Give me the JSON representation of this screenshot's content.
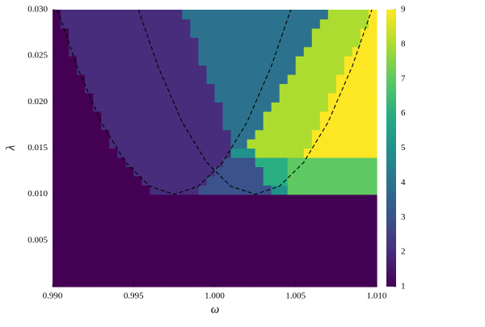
{
  "chart_data": {
    "type": "heatmap",
    "x_label": "ω",
    "y_label": "λ",
    "xlim": [
      0.99,
      1.01
    ],
    "ylim": [
      0,
      0.03
    ],
    "xticks": [
      {
        "value": 0.99,
        "label": "0.990"
      },
      0.995,
      {
        "value": 1.0,
        "label": "1.000"
      },
      1.005,
      {
        "value": 1.01,
        "label": "1.010"
      }
    ],
    "yticks": [
      0.005,
      {
        "value": 0.01,
        "label": "0.010"
      },
      0.015,
      {
        "value": 0.02,
        "label": "0.020"
      },
      0.025,
      {
        "value": 0.03,
        "label": "0.030"
      }
    ],
    "clim": [
      1,
      9
    ],
    "colorbar_ticks": [
      1,
      2,
      3,
      4,
      5,
      6,
      7,
      8,
      9
    ],
    "colorscale": [
      "#440154",
      "#472d7b",
      "#3b528b",
      "#2c728e",
      "#21918c",
      "#28ae80",
      "#5ec962",
      "#addc30",
      "#fde725"
    ],
    "z": [
      [
        1,
        1,
        1,
        1,
        1,
        1,
        1,
        1,
        1,
        1,
        1,
        1,
        1,
        1,
        1,
        1,
        1,
        1,
        1,
        1,
        1,
        1,
        1,
        1,
        1,
        1,
        1,
        1,
        1,
        1,
        1,
        1,
        1,
        1,
        1,
        1,
        1,
        1,
        1,
        1
      ],
      [
        1,
        1,
        1,
        1,
        1,
        1,
        1,
        1,
        1,
        1,
        1,
        1,
        1,
        1,
        1,
        1,
        1,
        1,
        1,
        1,
        1,
        1,
        1,
        1,
        1,
        1,
        1,
        1,
        1,
        1,
        1,
        1,
        1,
        1,
        1,
        1,
        1,
        1,
        1,
        1
      ],
      [
        1,
        1,
        1,
        1,
        1,
        1,
        1,
        1,
        1,
        1,
        1,
        1,
        1,
        1,
        1,
        1,
        1,
        1,
        1,
        1,
        1,
        1,
        1,
        1,
        1,
        1,
        1,
        1,
        1,
        1,
        1,
        1,
        1,
        1,
        1,
        1,
        1,
        1,
        1,
        1
      ],
      [
        1,
        1,
        1,
        1,
        1,
        1,
        1,
        1,
        1,
        1,
        1,
        1,
        1,
        1,
        1,
        1,
        1,
        1,
        1,
        1,
        1,
        1,
        1,
        1,
        1,
        1,
        1,
        1,
        1,
        1,
        1,
        1,
        1,
        1,
        1,
        1,
        1,
        1,
        1,
        1
      ],
      [
        1,
        1,
        1,
        1,
        1,
        1,
        1,
        1,
        1,
        1,
        1,
        1,
        1,
        1,
        1,
        1,
        1,
        1,
        1,
        1,
        1,
        1,
        1,
        1,
        1,
        1,
        1,
        1,
        1,
        1,
        1,
        1,
        1,
        1,
        1,
        1,
        1,
        1,
        1,
        1
      ],
      [
        1,
        1,
        1,
        1,
        1,
        1,
        1,
        1,
        1,
        1,
        1,
        1,
        1,
        1,
        1,
        1,
        1,
        1,
        1,
        1,
        1,
        1,
        1,
        1,
        1,
        1,
        1,
        1,
        1,
        1,
        1,
        1,
        1,
        1,
        1,
        1,
        1,
        1,
        1,
        1
      ],
      [
        1,
        1,
        1,
        1,
        1,
        1,
        1,
        1,
        1,
        1,
        1,
        1,
        1,
        1,
        1,
        1,
        1,
        1,
        1,
        1,
        1,
        1,
        1,
        1,
        1,
        1,
        1,
        1,
        1,
        1,
        1,
        1,
        1,
        1,
        1,
        1,
        1,
        1,
        1,
        1
      ],
      [
        1,
        1,
        1,
        1,
        1,
        1,
        1,
        1,
        1,
        1,
        1,
        1,
        1,
        1,
        1,
        1,
        1,
        1,
        1,
        1,
        1,
        1,
        1,
        1,
        1,
        1,
        1,
        1,
        1,
        1,
        1,
        1,
        1,
        1,
        1,
        1,
        1,
        1,
        1,
        1
      ],
      [
        1,
        1,
        1,
        1,
        1,
        1,
        1,
        1,
        1,
        1,
        1,
        1,
        1,
        1,
        1,
        1,
        1,
        1,
        1,
        1,
        1,
        1,
        1,
        1,
        1,
        1,
        1,
        1,
        1,
        1,
        1,
        1,
        1,
        1,
        1,
        1,
        1,
        1,
        1,
        1
      ],
      [
        1,
        1,
        1,
        1,
        1,
        1,
        1,
        1,
        1,
        1,
        1,
        1,
        1,
        1,
        1,
        1,
        1,
        1,
        1,
        1,
        1,
        1,
        1,
        1,
        1,
        1,
        1,
        1,
        1,
        1,
        1,
        1,
        1,
        1,
        1,
        1,
        1,
        1,
        1,
        1
      ],
      [
        1,
        1,
        1,
        1,
        1,
        1,
        1,
        1,
        1,
        1,
        1,
        1,
        2,
        2,
        2,
        2,
        2,
        2,
        3,
        3,
        3,
        3,
        3,
        3,
        3,
        3,
        3,
        5,
        5,
        7,
        7,
        7,
        7,
        7,
        7,
        7,
        7,
        7,
        7,
        7
      ],
      [
        1,
        1,
        1,
        1,
        1,
        1,
        1,
        1,
        1,
        1,
        1,
        2,
        2,
        2,
        2,
        2,
        2,
        2,
        2,
        3,
        3,
        3,
        3,
        3,
        3,
        3,
        6,
        6,
        6,
        7,
        7,
        7,
        7,
        7,
        7,
        7,
        7,
        7,
        7,
        7
      ],
      [
        1,
        1,
        1,
        1,
        1,
        1,
        1,
        1,
        1,
        1,
        2,
        2,
        2,
        2,
        2,
        2,
        2,
        2,
        2,
        2,
        3,
        3,
        3,
        3,
        3,
        3,
        6,
        6,
        6,
        7,
        7,
        7,
        7,
        7,
        7,
        7,
        7,
        7,
        7,
        7
      ],
      [
        1,
        1,
        1,
        1,
        1,
        1,
        1,
        1,
        1,
        2,
        2,
        2,
        2,
        2,
        2,
        2,
        2,
        2,
        2,
        2,
        2,
        3,
        3,
        3,
        3,
        6,
        6,
        6,
        6,
        7,
        7,
        7,
        7,
        7,
        7,
        7,
        7,
        7,
        7,
        7
      ],
      [
        1,
        1,
        1,
        1,
        1,
        1,
        1,
        1,
        2,
        2,
        2,
        2,
        2,
        2,
        2,
        2,
        2,
        2,
        2,
        2,
        2,
        2,
        5,
        5,
        5,
        8,
        8,
        8,
        8,
        8,
        8,
        9,
        9,
        9,
        9,
        9,
        9,
        9,
        9,
        9
      ],
      [
        1,
        1,
        1,
        1,
        1,
        1,
        1,
        2,
        2,
        2,
        2,
        2,
        2,
        2,
        2,
        2,
        2,
        2,
        2,
        2,
        2,
        2,
        4,
        4,
        8,
        8,
        8,
        8,
        8,
        8,
        8,
        8,
        9,
        9,
        9,
        9,
        9,
        9,
        9,
        9
      ],
      [
        1,
        1,
        1,
        1,
        1,
        1,
        1,
        2,
        2,
        2,
        2,
        2,
        2,
        2,
        2,
        2,
        2,
        2,
        2,
        2,
        2,
        2,
        4,
        4,
        4,
        8,
        8,
        8,
        8,
        8,
        8,
        8,
        9,
        9,
        9,
        9,
        9,
        9,
        9,
        9
      ],
      [
        1,
        1,
        1,
        1,
        1,
        1,
        2,
        2,
        2,
        2,
        2,
        2,
        2,
        2,
        2,
        2,
        2,
        2,
        2,
        2,
        2,
        4,
        4,
        4,
        4,
        4,
        8,
        8,
        8,
        8,
        8,
        8,
        8,
        9,
        9,
        9,
        9,
        9,
        9,
        9
      ],
      [
        1,
        1,
        1,
        1,
        1,
        1,
        2,
        2,
        2,
        2,
        2,
        2,
        2,
        2,
        2,
        2,
        2,
        2,
        2,
        2,
        2,
        4,
        4,
        4,
        4,
        4,
        8,
        8,
        8,
        8,
        8,
        8,
        8,
        9,
        9,
        9,
        9,
        9,
        9,
        9
      ],
      [
        1,
        1,
        1,
        1,
        1,
        2,
        2,
        2,
        2,
        2,
        2,
        2,
        2,
        2,
        2,
        2,
        2,
        2,
        2,
        2,
        2,
        4,
        4,
        4,
        4,
        4,
        4,
        8,
        8,
        8,
        8,
        8,
        8,
        8,
        9,
        9,
        9,
        9,
        9,
        9
      ],
      [
        1,
        1,
        1,
        1,
        1,
        2,
        2,
        2,
        2,
        2,
        2,
        2,
        2,
        2,
        2,
        2,
        2,
        2,
        2,
        2,
        4,
        4,
        4,
        4,
        4,
        4,
        4,
        4,
        8,
        8,
        8,
        8,
        8,
        8,
        9,
        9,
        9,
        9,
        9,
        9
      ],
      [
        1,
        1,
        1,
        1,
        2,
        2,
        2,
        2,
        2,
        2,
        2,
        2,
        2,
        2,
        2,
        2,
        2,
        2,
        2,
        2,
        4,
        4,
        4,
        4,
        4,
        4,
        4,
        4,
        8,
        8,
        8,
        8,
        8,
        8,
        8,
        9,
        9,
        9,
        9,
        9
      ],
      [
        1,
        1,
        1,
        1,
        2,
        2,
        2,
        2,
        2,
        2,
        2,
        2,
        2,
        2,
        2,
        2,
        2,
        2,
        2,
        4,
        4,
        4,
        4,
        4,
        4,
        4,
        4,
        4,
        4,
        8,
        8,
        8,
        8,
        8,
        8,
        9,
        9,
        9,
        9,
        9
      ],
      [
        1,
        1,
        1,
        2,
        2,
        2,
        2,
        2,
        2,
        2,
        2,
        2,
        2,
        2,
        2,
        2,
        2,
        2,
        2,
        4,
        4,
        4,
        4,
        4,
        4,
        4,
        4,
        4,
        4,
        4,
        8,
        8,
        8,
        8,
        8,
        8,
        9,
        9,
        9,
        9
      ],
      [
        1,
        1,
        1,
        2,
        2,
        2,
        2,
        2,
        2,
        2,
        2,
        2,
        2,
        2,
        2,
        2,
        2,
        2,
        4,
        4,
        4,
        4,
        4,
        4,
        4,
        4,
        4,
        4,
        4,
        4,
        8,
        8,
        8,
        8,
        8,
        8,
        9,
        9,
        9,
        9
      ],
      [
        1,
        1,
        2,
        2,
        2,
        2,
        2,
        2,
        2,
        2,
        2,
        2,
        2,
        2,
        2,
        2,
        2,
        2,
        4,
        4,
        4,
        4,
        4,
        4,
        4,
        4,
        4,
        4,
        4,
        4,
        4,
        8,
        8,
        8,
        8,
        8,
        8,
        9,
        9,
        9
      ],
      [
        1,
        1,
        2,
        2,
        2,
        2,
        2,
        2,
        2,
        2,
        2,
        2,
        2,
        2,
        2,
        2,
        2,
        2,
        4,
        4,
        4,
        4,
        4,
        4,
        4,
        4,
        4,
        4,
        4,
        4,
        4,
        4,
        8,
        8,
        8,
        8,
        8,
        8,
        9,
        9
      ],
      [
        1,
        1,
        2,
        2,
        2,
        2,
        2,
        2,
        2,
        2,
        2,
        2,
        2,
        2,
        2,
        2,
        2,
        4,
        4,
        4,
        4,
        4,
        4,
        4,
        4,
        4,
        4,
        4,
        4,
        4,
        4,
        4,
        8,
        8,
        8,
        8,
        8,
        8,
        9,
        9
      ],
      [
        1,
        2,
        2,
        2,
        2,
        2,
        2,
        2,
        2,
        2,
        2,
        2,
        2,
        2,
        2,
        2,
        2,
        4,
        4,
        4,
        4,
        4,
        4,
        4,
        4,
        4,
        4,
        4,
        4,
        4,
        4,
        4,
        4,
        8,
        8,
        8,
        8,
        8,
        8,
        9
      ],
      [
        1,
        2,
        2,
        2,
        2,
        2,
        2,
        2,
        2,
        2,
        2,
        2,
        2,
        2,
        2,
        2,
        4,
        4,
        4,
        4,
        4,
        4,
        4,
        4,
        4,
        4,
        4,
        4,
        4,
        4,
        4,
        4,
        4,
        4,
        8,
        8,
        8,
        8,
        8,
        9
      ]
    ],
    "lines": [
      {
        "color": "#000000",
        "x": [
          0.9903,
          0.9915,
          0.993,
          0.9945,
          0.996,
          0.9975,
          0.999,
          1.0005,
          1.002,
          1.0035,
          1.0047
        ],
        "y": [
          0.03,
          0.02389,
          0.01781,
          0.01347,
          0.01087,
          0.01,
          0.01087,
          0.01347,
          0.01781,
          0.02389,
          0.03
        ]
      },
      {
        "color": "#000000",
        "x": [
          0.9953,
          0.9965,
          0.998,
          0.9995,
          1.001,
          1.0025,
          1.004,
          1.0055,
          1.007,
          1.0085,
          1.0097
        ],
        "y": [
          0.03,
          0.02389,
          0.01781,
          0.01347,
          0.01087,
          0.01,
          0.01087,
          0.01347,
          0.01781,
          0.02389,
          0.03
        ]
      }
    ]
  }
}
